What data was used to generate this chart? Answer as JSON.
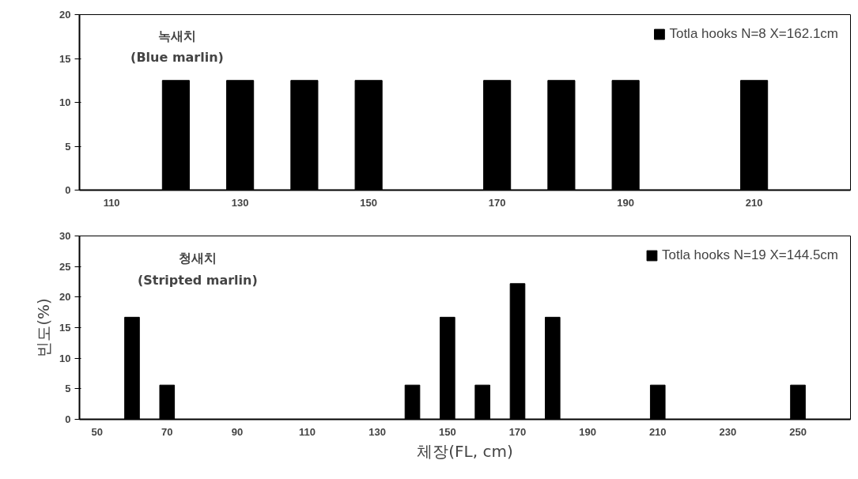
{
  "chart_data": [
    {
      "type": "bar",
      "categories": [
        "110",
        null,
        "130",
        null,
        "150",
        null,
        "170",
        null,
        "190",
        null,
        "210",
        null
      ],
      "series": [
        {
          "name": "Totla hooks N=8 X=162.1cm",
          "color": "#000000",
          "values": [
            0,
            12.5,
            12.5,
            12.5,
            12.5,
            0,
            12.5,
            12.5,
            12.5,
            0,
            12.5,
            0
          ]
        }
      ],
      "ylim": [
        0,
        20
      ],
      "yticks": [
        0,
        5,
        10,
        15,
        20
      ],
      "grid": false,
      "legend": "top right",
      "annotations": [
        "녹새치\n(Blue marlin)"
      ]
    },
    {
      "type": "bar",
      "categories": [
        "50",
        null,
        "70",
        null,
        "90",
        null,
        "110",
        null,
        "130",
        null,
        "150",
        null,
        "170",
        null,
        "190",
        null,
        "210",
        null,
        "230",
        null,
        "250",
        null
      ],
      "series": [
        {
          "name": "Totla hooks N=19 X=144.5cm",
          "color": "#000000",
          "values": [
            0,
            16.7,
            5.6,
            0,
            0,
            0,
            0,
            0,
            0,
            5.6,
            16.7,
            5.6,
            22.2,
            16.7,
            0,
            0,
            5.6,
            0,
            0,
            0,
            5.6,
            0
          ]
        }
      ],
      "ylim": [
        0,
        30
      ],
      "yticks": [
        0,
        5,
        10,
        15,
        20,
        25,
        30
      ],
      "grid": false,
      "legend": "top right",
      "xlabel": "체장(FL, cm)",
      "ylabel": "빈도(%)",
      "annotations": [
        "청새치\n(Stripted marlin)"
      ]
    }
  ]
}
